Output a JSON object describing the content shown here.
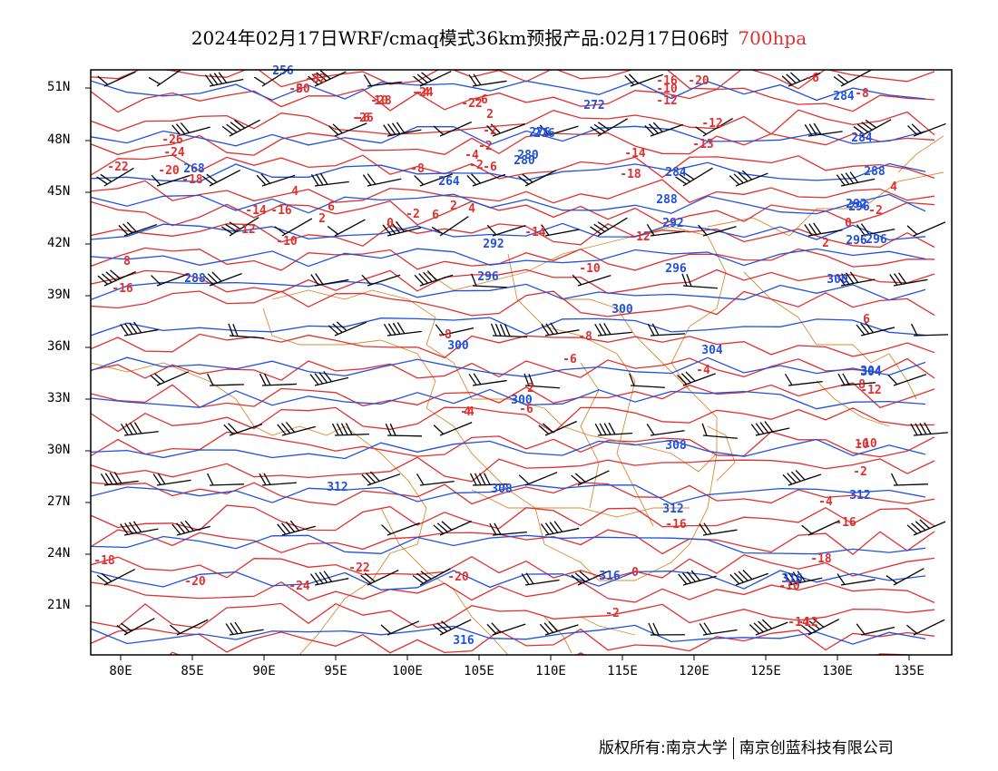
{
  "title": {
    "main": "2024年02月17日WRF/cmaq模式36km预报产品:02月17日06时",
    "level": "700hpa"
  },
  "colors": {
    "temperature": "#e03030",
    "height": "#2050e0",
    "border": "#d88a30",
    "wind": "#000000"
  },
  "lat_labels": [
    "51N",
    "48N",
    "45N",
    "42N",
    "39N",
    "36N",
    "33N",
    "30N",
    "27N",
    "24N",
    "21N"
  ],
  "lon_labels": [
    "80E",
    "85E",
    "90E",
    "95E",
    "100E",
    "105E",
    "110E",
    "115E",
    "120E",
    "125E",
    "130E",
    "135E"
  ],
  "temperature_labels": [
    "-30",
    "-32",
    "-28",
    "-26",
    "-24",
    "-22",
    "-26",
    "-24",
    "-22",
    "-20",
    "-18",
    "-16",
    "-14",
    "-12",
    "-10",
    "-8",
    "-6",
    "-4",
    "-2",
    "-2",
    "2",
    "-6",
    "-14",
    "-18",
    "-20",
    "-16",
    "-10",
    "-12",
    "-12",
    "-13",
    "-14",
    "-12",
    "-10",
    "-8",
    "-6",
    "-4",
    "-2",
    "0",
    "2",
    "4",
    "6",
    "8",
    "10",
    "-2",
    "-4",
    "-6",
    "-8",
    "-10",
    "-12",
    "-16",
    "0",
    "-2",
    "2",
    "4",
    "6",
    "-2",
    "0",
    "2",
    "4",
    "6",
    "8",
    "-16",
    "-18",
    "-20",
    "-24",
    "-22",
    "-20",
    "-18",
    "-16",
    "-14",
    "-12",
    "-10",
    "-8",
    "-6",
    "-4",
    "-2",
    "2",
    "4",
    "6",
    "8",
    "10",
    "-6",
    "-4"
  ],
  "height_labels": [
    "256",
    "268",
    "264",
    "276",
    "280",
    "272",
    "280",
    "284",
    "288",
    "292",
    "296",
    "296",
    "288",
    "292",
    "296",
    "300",
    "300",
    "300",
    "304",
    "304",
    "308",
    "308",
    "312",
    "312",
    "312",
    "316",
    "316",
    "316",
    "296",
    "284",
    "288",
    "292",
    "296",
    "300",
    "304",
    "284",
    "276"
  ],
  "footer": {
    "left": "版权所有:南京大学",
    "right": "南京创蓝科技有限公司"
  }
}
